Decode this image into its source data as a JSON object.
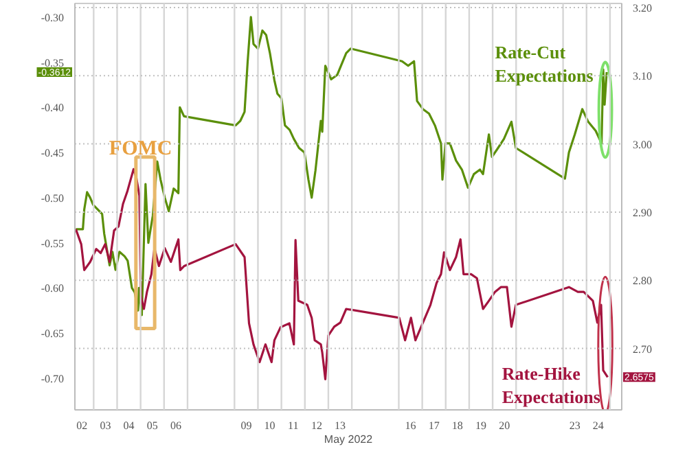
{
  "chart_data": {
    "type": "line",
    "xlabel": "May 2022",
    "xlim": [
      1.7,
      25.0
    ],
    "xticks": [
      {
        "value": 2,
        "label": "02"
      },
      {
        "value": 3,
        "label": "03"
      },
      {
        "value": 4,
        "label": "04"
      },
      {
        "value": 5,
        "label": "05"
      },
      {
        "value": 6,
        "label": "06"
      },
      {
        "value": 9,
        "label": "09"
      },
      {
        "value": 10,
        "label": "10"
      },
      {
        "value": 11,
        "label": "11"
      },
      {
        "value": 12,
        "label": "12"
      },
      {
        "value": 13,
        "label": "13"
      },
      {
        "value": 16,
        "label": "16"
      },
      {
        "value": 17,
        "label": "17"
      },
      {
        "value": 18,
        "label": "18"
      },
      {
        "value": 19,
        "label": "19"
      },
      {
        "value": 20,
        "label": "20"
      },
      {
        "value": 23,
        "label": "23"
      },
      {
        "value": 24,
        "label": "24"
      },
      {
        "value": 2.5,
        "label": null
      },
      {
        "value": 3.5,
        "label": null
      },
      {
        "value": 4.5,
        "label": null
      },
      {
        "value": 5.5,
        "label": null
      },
      {
        "value": 6.5,
        "label": null
      },
      {
        "value": 8.5,
        "label": null
      },
      {
        "value": 9.5,
        "label": null
      },
      {
        "value": 10.5,
        "label": null
      },
      {
        "value": 11.5,
        "label": null
      },
      {
        "value": 12.5,
        "label": null
      },
      {
        "value": 13.5,
        "label": null
      },
      {
        "value": 15.5,
        "label": null
      },
      {
        "value": 16.5,
        "label": null
      },
      {
        "value": 17.5,
        "label": null
      },
      {
        "value": 18.5,
        "label": null
      },
      {
        "value": 19.5,
        "label": null
      },
      {
        "value": 20.5,
        "label": null
      },
      {
        "value": 22.5,
        "label": null
      },
      {
        "value": 23.5,
        "label": null
      },
      {
        "value": 24.5,
        "label": null
      }
    ],
    "ylim": [
      -0.735,
      -0.285
    ],
    "yticks": [
      {
        "value": -0.3,
        "label": "-0.30"
      },
      {
        "value": -0.35,
        "label": "-0.35"
      },
      {
        "value": -0.4,
        "label": "-0.40"
      },
      {
        "value": -0.45,
        "label": "-0.45"
      },
      {
        "value": -0.5,
        "label": "-0.50"
      },
      {
        "value": -0.55,
        "label": "-0.55"
      },
      {
        "value": -0.6,
        "label": "-0.60"
      },
      {
        "value": -0.65,
        "label": "-0.65"
      },
      {
        "value": -0.7,
        "label": "-0.70"
      }
    ],
    "y2lim": [
      2.61,
      3.206
    ],
    "y2ticks": [
      {
        "value": 2.7,
        "label": "2.70"
      },
      {
        "value": 2.8,
        "label": "2.80"
      },
      {
        "value": 2.9,
        "label": "2.90"
      },
      {
        "value": 3.0,
        "label": "3.00"
      },
      {
        "value": 3.1,
        "label": "3.10"
      },
      {
        "value": 3.2,
        "label": "3.20"
      }
    ],
    "grid": true,
    "marker": "none",
    "line_style": "solid",
    "series": [
      {
        "color": "#5b8f0a",
        "x": [
          1.74,
          2.04,
          2.1,
          2.22,
          2.35,
          2.48,
          2.86,
          2.95,
          3.18,
          3.3,
          3.43,
          3.6,
          3.82,
          3.95,
          4.13,
          4.25,
          4.39,
          4.43,
          4.55,
          4.71,
          4.83,
          5.02,
          5.21,
          5.35,
          5.53,
          5.7,
          5.91,
          6.11,
          6.17,
          6.35,
          8.55,
          8.75,
          8.93,
          9.06,
          9.2,
          9.31,
          9.5,
          9.69,
          9.85,
          10.01,
          10.2,
          10.33,
          10.5,
          10.65,
          10.85,
          11.03,
          11.25,
          11.48,
          11.65,
          11.79,
          11.95,
          12.18,
          12.24,
          12.37,
          12.62,
          12.88,
          13.26,
          13.45,
          15.64,
          15.9,
          16.15,
          16.28,
          16.53,
          16.79,
          17.04,
          17.3,
          17.36,
          17.49,
          17.68,
          17.94,
          18.19,
          18.45,
          18.7,
          18.96,
          19.09,
          19.34,
          19.47,
          19.73,
          19.98,
          20.3,
          20.49,
          22.58,
          22.75,
          23.0,
          23.32,
          23.57,
          23.89,
          24.14,
          24.21,
          24.27,
          24.36
        ],
        "values": [
          -0.535,
          -0.535,
          -0.513,
          -0.494,
          -0.5,
          -0.508,
          -0.518,
          -0.54,
          -0.575,
          -0.56,
          -0.58,
          -0.56,
          -0.565,
          -0.57,
          -0.6,
          -0.605,
          -0.625,
          -0.6,
          -0.63,
          -0.485,
          -0.55,
          -0.52,
          -0.46,
          -0.48,
          -0.5,
          -0.515,
          -0.49,
          -0.495,
          -0.4,
          -0.41,
          -0.42,
          -0.415,
          -0.405,
          -0.35,
          -0.3,
          -0.33,
          -0.335,
          -0.315,
          -0.32,
          -0.34,
          -0.37,
          -0.385,
          -0.39,
          -0.42,
          -0.425,
          -0.435,
          -0.445,
          -0.45,
          -0.48,
          -0.5,
          -0.47,
          -0.415,
          -0.427,
          -0.354,
          -0.369,
          -0.364,
          -0.34,
          -0.335,
          -0.349,
          -0.354,
          -0.349,
          -0.393,
          -0.402,
          -0.407,
          -0.42,
          -0.44,
          -0.48,
          -0.44,
          -0.44,
          -0.459,
          -0.469,
          -0.489,
          -0.474,
          -0.469,
          -0.474,
          -0.43,
          -0.455,
          -0.445,
          -0.435,
          -0.416,
          -0.445,
          -0.479,
          -0.45,
          -0.43,
          -0.402,
          -0.416,
          -0.426,
          -0.44,
          -0.358,
          -0.397,
          -0.361
        ]
      },
      {
        "color": "#a3143f",
        "axis": "y2",
        "x": [
          1.74,
          1.97,
          2.1,
          2.35,
          2.61,
          2.8,
          2.99,
          3.18,
          3.37,
          3.56,
          3.75,
          3.94,
          4.2,
          4.32,
          4.45,
          4.51,
          4.64,
          4.77,
          4.96,
          5.09,
          5.28,
          5.53,
          5.79,
          6.11,
          6.19,
          6.36,
          8.55,
          8.93,
          9.12,
          9.31,
          9.57,
          9.82,
          10.08,
          10.2,
          10.46,
          10.84,
          11.03,
          11.1,
          11.22,
          11.6,
          11.79,
          11.92,
          12.18,
          12.24,
          12.37,
          12.5,
          12.75,
          13.01,
          13.26,
          15.52,
          15.77,
          16.02,
          16.21,
          16.53,
          16.85,
          17.11,
          17.3,
          17.43,
          17.68,
          17.94,
          18.13,
          18.26,
          18.58,
          18.83,
          19.09,
          19.34,
          19.6,
          19.85,
          20.11,
          20.3,
          20.49,
          22.75,
          23.13,
          23.38,
          23.77,
          23.96,
          24.12,
          24.21,
          24.4
        ],
        "values": [
          2.875,
          2.853,
          2.815,
          2.827,
          2.846,
          2.84,
          2.853,
          2.827,
          2.873,
          2.879,
          2.912,
          2.931,
          2.963,
          2.95,
          2.924,
          2.777,
          2.758,
          2.783,
          2.809,
          2.847,
          2.821,
          2.847,
          2.827,
          2.86,
          2.815,
          2.821,
          2.853,
          2.834,
          2.737,
          2.706,
          2.68,
          2.706,
          2.68,
          2.712,
          2.731,
          2.737,
          2.706,
          2.859,
          2.77,
          2.764,
          2.745,
          2.712,
          2.706,
          2.694,
          2.655,
          2.719,
          2.732,
          2.738,
          2.758,
          2.745,
          2.712,
          2.745,
          2.712,
          2.738,
          2.764,
          2.796,
          2.809,
          2.841,
          2.815,
          2.834,
          2.86,
          2.809,
          2.809,
          2.803,
          2.758,
          2.77,
          2.783,
          2.79,
          2.79,
          2.732,
          2.764,
          2.79,
          2.783,
          2.783,
          2.77,
          2.738,
          2.764,
          2.668,
          2.658
        ]
      }
    ],
    "annotations": [
      "FOMC",
      "Rate-Cut Expectations",
      "Rate-Hike Expectations",
      "-0.3612",
      "2.6575"
    ]
  }
}
